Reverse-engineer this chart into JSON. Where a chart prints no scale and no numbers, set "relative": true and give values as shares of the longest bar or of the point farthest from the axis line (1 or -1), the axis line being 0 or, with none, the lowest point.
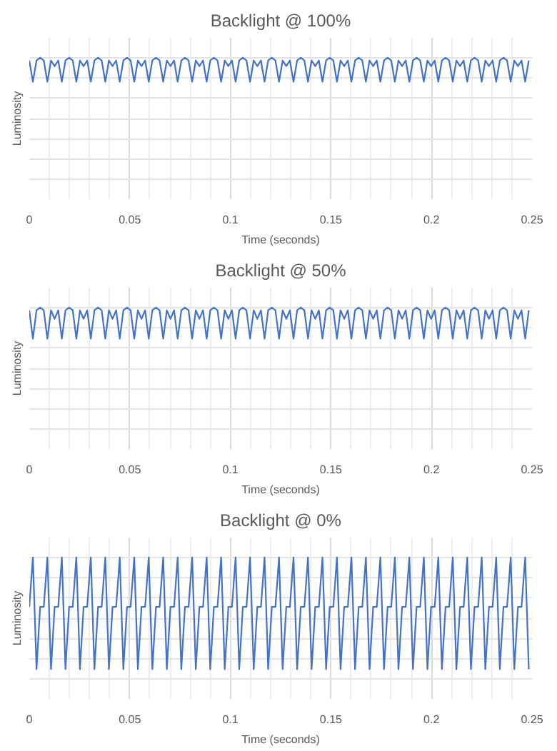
{
  "chart_data": [
    {
      "type": "line",
      "title": "Backlight @ 100%",
      "xlabel": "Time (seconds)",
      "ylabel": "Luminosity",
      "relative": true,
      "xlim": [
        0,
        0.25
      ],
      "xticks": [
        0,
        0.05,
        0.1,
        0.15,
        0.2,
        0.25
      ],
      "tick_labels": "x",
      "grid": true,
      "x": [
        0,
        0.0018,
        0.0036,
        0.0054,
        0.0072,
        0.009,
        0.0108,
        0.0126,
        0.0144,
        0.0162,
        0.018,
        0.0198,
        0.0216,
        0.0234,
        0.0252,
        0.027,
        0.0288,
        0.0306,
        0.0324,
        0.0342,
        0.036,
        0.0378,
        0.0396,
        0.0414,
        0.0432,
        0.045,
        0.0468,
        0.0486,
        0.0504,
        0.0522,
        0.054,
        0.0558,
        0.0576,
        0.0594,
        0.0612,
        0.063,
        0.0648,
        0.0666,
        0.0684,
        0.0702,
        0.072,
        0.0738,
        0.0756,
        0.0774,
        0.0792,
        0.081,
        0.0828,
        0.0846,
        0.0864,
        0.0882,
        0.09,
        0.0918,
        0.0936,
        0.0954,
        0.0972,
        0.099,
        0.1008,
        0.1026,
        0.1044,
        0.1062,
        0.108,
        0.1098,
        0.1116,
        0.1134,
        0.1152,
        0.117,
        0.1188,
        0.1206,
        0.1224,
        0.1242,
        0.126,
        0.1278,
        0.1296,
        0.1314,
        0.1332,
        0.135,
        0.1368,
        0.1386,
        0.1404,
        0.1422,
        0.144,
        0.1458,
        0.1476,
        0.1494,
        0.1512,
        0.153,
        0.1548,
        0.1566,
        0.1584,
        0.1602,
        0.162,
        0.1638,
        0.1656,
        0.1674,
        0.1692,
        0.171,
        0.1728,
        0.1746,
        0.1764,
        0.1782,
        0.18,
        0.1818,
        0.1836,
        0.1854,
        0.1872,
        0.189,
        0.1908,
        0.1926,
        0.1944,
        0.1962,
        0.198,
        0.1998,
        0.2016,
        0.2034,
        0.2052,
        0.207,
        0.2088,
        0.2106,
        0.2124,
        0.2142,
        0.216,
        0.2178,
        0.2196,
        0.2214,
        0.2232,
        0.225,
        0.2268,
        0.2286,
        0.2304,
        0.2322,
        0.234,
        0.2358,
        0.2376,
        0.2394,
        0.2412,
        0.243,
        0.2448,
        0.2466,
        0.2484
      ],
      "series": [
        {
          "color": "#4472c4",
          "values": [
            0.98,
            0.83,
            0.98,
            1,
            0.98,
            0.83,
            0.98,
            0.94,
            0.98,
            0.83,
            0.98,
            1,
            0.98,
            0.83,
            0.98,
            0.94,
            0.98,
            0.83,
            0.98,
            1,
            0.98,
            0.83,
            0.98,
            0.94,
            0.98,
            0.83,
            0.98,
            1,
            0.98,
            0.83,
            0.98,
            0.94,
            0.98,
            0.83,
            0.98,
            1,
            0.98,
            0.83,
            0.98,
            0.94,
            0.98,
            0.83,
            0.98,
            1,
            0.98,
            0.83,
            0.98,
            0.94,
            0.98,
            0.83,
            0.98,
            1,
            0.98,
            0.83,
            0.98,
            0.94,
            0.98,
            0.83,
            0.98,
            1,
            0.98,
            0.83,
            0.98,
            0.94,
            0.98,
            0.83,
            0.98,
            1,
            0.98,
            0.83,
            0.98,
            0.94,
            0.98,
            0.83,
            0.98,
            1,
            0.98,
            0.83,
            0.98,
            0.94,
            0.98,
            0.83,
            0.98,
            1,
            0.98,
            0.83,
            0.98,
            0.94,
            0.98,
            0.83,
            0.98,
            1,
            0.98,
            0.83,
            0.98,
            0.94,
            0.98,
            0.83,
            0.98,
            1,
            0.98,
            0.83,
            0.98,
            0.94,
            0.98,
            0.83,
            0.98,
            1,
            0.98,
            0.83,
            0.98,
            0.94,
            0.98,
            0.83,
            0.98,
            1,
            0.98,
            0.83,
            0.98,
            0.94,
            0.98,
            0.83,
            0.98,
            1,
            0.98,
            0.83,
            0.98,
            0.94,
            0.98,
            0.83,
            0.98,
            1,
            0.98,
            0.83,
            0.98,
            0.94,
            0.98,
            0.83,
            0.98
          ]
        }
      ]
    },
    {
      "type": "line",
      "title": "Backlight @ 50%",
      "xlabel": "Time (seconds)",
      "ylabel": "Luminosity",
      "relative": true,
      "xlim": [
        0,
        0.25
      ],
      "xticks": [
        0,
        0.05,
        0.1,
        0.15,
        0.2,
        0.25
      ],
      "tick_labels": "x",
      "grid": true,
      "x": [
        0,
        0.0018,
        0.0036,
        0.0054,
        0.0072,
        0.009,
        0.0108,
        0.0126,
        0.0144,
        0.0162,
        0.018,
        0.0198,
        0.0216,
        0.0234,
        0.0252,
        0.027,
        0.0288,
        0.0306,
        0.0324,
        0.0342,
        0.036,
        0.0378,
        0.0396,
        0.0414,
        0.0432,
        0.045,
        0.0468,
        0.0486,
        0.0504,
        0.0522,
        0.054,
        0.0558,
        0.0576,
        0.0594,
        0.0612,
        0.063,
        0.0648,
        0.0666,
        0.0684,
        0.0702,
        0.072,
        0.0738,
        0.0756,
        0.0774,
        0.0792,
        0.081,
        0.0828,
        0.0846,
        0.0864,
        0.0882,
        0.09,
        0.0918,
        0.0936,
        0.0954,
        0.0972,
        0.099,
        0.1008,
        0.1026,
        0.1044,
        0.1062,
        0.108,
        0.1098,
        0.1116,
        0.1134,
        0.1152,
        0.117,
        0.1188,
        0.1206,
        0.1224,
        0.1242,
        0.126,
        0.1278,
        0.1296,
        0.1314,
        0.1332,
        0.135,
        0.1368,
        0.1386,
        0.1404,
        0.1422,
        0.144,
        0.1458,
        0.1476,
        0.1494,
        0.1512,
        0.153,
        0.1548,
        0.1566,
        0.1584,
        0.1602,
        0.162,
        0.1638,
        0.1656,
        0.1674,
        0.1692,
        0.171,
        0.1728,
        0.1746,
        0.1764,
        0.1782,
        0.18,
        0.1818,
        0.1836,
        0.1854,
        0.1872,
        0.189,
        0.1908,
        0.1926,
        0.1944,
        0.1962,
        0.198,
        0.1998,
        0.2016,
        0.2034,
        0.2052,
        0.207,
        0.2088,
        0.2106,
        0.2124,
        0.2142,
        0.216,
        0.2178,
        0.2196,
        0.2214,
        0.2232,
        0.225,
        0.2268,
        0.2286,
        0.2304,
        0.2322,
        0.234,
        0.2358,
        0.2376,
        0.2394,
        0.2412,
        0.243,
        0.2448,
        0.2466,
        0.2484
      ],
      "series": [
        {
          "color": "#4472c4",
          "values": [
            0.98,
            0.78,
            0.98,
            1,
            0.98,
            0.78,
            0.98,
            0.92,
            0.98,
            0.78,
            0.98,
            1,
            0.98,
            0.78,
            0.98,
            0.92,
            0.98,
            0.78,
            0.98,
            1,
            0.98,
            0.78,
            0.98,
            0.92,
            0.98,
            0.78,
            0.98,
            1,
            0.98,
            0.78,
            0.98,
            0.92,
            0.98,
            0.78,
            0.98,
            1,
            0.98,
            0.78,
            0.98,
            0.92,
            0.98,
            0.78,
            0.98,
            1,
            0.98,
            0.78,
            0.98,
            0.92,
            0.98,
            0.78,
            0.98,
            1,
            0.98,
            0.78,
            0.98,
            0.92,
            0.98,
            0.78,
            0.98,
            1,
            0.98,
            0.78,
            0.98,
            0.92,
            0.98,
            0.78,
            0.98,
            1,
            0.98,
            0.78,
            0.98,
            0.92,
            0.98,
            0.78,
            0.98,
            1,
            0.98,
            0.78,
            0.98,
            0.92,
            0.98,
            0.78,
            0.98,
            1,
            0.98,
            0.78,
            0.98,
            0.92,
            0.98,
            0.78,
            0.98,
            1,
            0.98,
            0.78,
            0.98,
            0.92,
            0.98,
            0.78,
            0.98,
            1,
            0.98,
            0.78,
            0.98,
            0.92,
            0.98,
            0.78,
            0.98,
            1,
            0.98,
            0.78,
            0.98,
            0.92,
            0.98,
            0.78,
            0.98,
            1,
            0.98,
            0.78,
            0.98,
            0.92,
            0.98,
            0.78,
            0.98,
            1,
            0.98,
            0.78,
            0.98,
            0.92,
            0.98,
            0.78,
            0.98,
            1,
            0.98,
            0.78,
            0.98,
            0.92,
            0.98,
            0.78,
            0.98
          ]
        }
      ]
    },
    {
      "type": "line",
      "title": "Backlight @ 0%",
      "xlabel": "Time (seconds)",
      "ylabel": "Luminosity",
      "relative": true,
      "xlim": [
        0,
        0.25
      ],
      "xticks": [
        0,
        0.05,
        0.1,
        0.15,
        0.2,
        0.25
      ],
      "tick_labels": "x",
      "grid": true,
      "x": [
        0,
        0.0018,
        0.0036,
        0.0054,
        0.0072,
        0.009,
        0.0108,
        0.0126,
        0.0144,
        0.0162,
        0.018,
        0.0198,
        0.0216,
        0.0234,
        0.0252,
        0.027,
        0.0288,
        0.0306,
        0.0324,
        0.0342,
        0.036,
        0.0378,
        0.0396,
        0.0414,
        0.0432,
        0.045,
        0.0468,
        0.0486,
        0.0504,
        0.0522,
        0.054,
        0.0558,
        0.0576,
        0.0594,
        0.0612,
        0.063,
        0.0648,
        0.0666,
        0.0684,
        0.0702,
        0.072,
        0.0738,
        0.0756,
        0.0774,
        0.0792,
        0.081,
        0.0828,
        0.0846,
        0.0864,
        0.0882,
        0.09,
        0.0918,
        0.0936,
        0.0954,
        0.0972,
        0.099,
        0.1008,
        0.1026,
        0.1044,
        0.1062,
        0.108,
        0.1098,
        0.1116,
        0.1134,
        0.1152,
        0.117,
        0.1188,
        0.1206,
        0.1224,
        0.1242,
        0.126,
        0.1278,
        0.1296,
        0.1314,
        0.1332,
        0.135,
        0.1368,
        0.1386,
        0.1404,
        0.1422,
        0.144,
        0.1458,
        0.1476,
        0.1494,
        0.1512,
        0.153,
        0.1548,
        0.1566,
        0.1584,
        0.1602,
        0.162,
        0.1638,
        0.1656,
        0.1674,
        0.1692,
        0.171,
        0.1728,
        0.1746,
        0.1764,
        0.1782,
        0.18,
        0.1818,
        0.1836,
        0.1854,
        0.1872,
        0.189,
        0.1908,
        0.1926,
        0.1944,
        0.1962,
        0.198,
        0.1998,
        0.2016,
        0.2034,
        0.2052,
        0.207,
        0.2088,
        0.2106,
        0.2124,
        0.2142,
        0.216,
        0.2178,
        0.2196,
        0.2214,
        0.2232,
        0.225,
        0.2268,
        0.2286,
        0.2304,
        0.2322,
        0.234,
        0.2358,
        0.2376,
        0.2394,
        0.2412,
        0.243,
        0.2448,
        0.2466,
        0.2484
      ],
      "series": [
        {
          "color": "#4472c4",
          "values": [
            0.65,
            1,
            0.21,
            0.65,
            0.65,
            1,
            0.21,
            0.65,
            0.65,
            1,
            0.21,
            0.65,
            0.65,
            1,
            0.21,
            0.65,
            0.65,
            1,
            0.21,
            0.65,
            0.65,
            1,
            0.21,
            0.65,
            0.65,
            1,
            0.21,
            0.65,
            0.65,
            1,
            0.21,
            0.65,
            0.65,
            1,
            0.21,
            0.65,
            0.65,
            1,
            0.21,
            0.65,
            0.65,
            1,
            0.21,
            0.65,
            0.65,
            1,
            0.21,
            0.65,
            0.65,
            1,
            0.21,
            0.65,
            0.65,
            1,
            0.21,
            0.65,
            0.65,
            1,
            0.21,
            0.65,
            0.65,
            1,
            0.21,
            0.65,
            0.65,
            1,
            0.21,
            0.65,
            0.65,
            1,
            0.21,
            0.65,
            0.65,
            1,
            0.21,
            0.65,
            0.65,
            1,
            0.21,
            0.65,
            0.65,
            1,
            0.21,
            0.65,
            0.65,
            1,
            0.21,
            0.65,
            0.65,
            1,
            0.21,
            0.65,
            0.65,
            1,
            0.21,
            0.65,
            0.65,
            1,
            0.21,
            0.65,
            0.65,
            1,
            0.21,
            0.65,
            0.65,
            1,
            0.21,
            0.65,
            0.65,
            1,
            0.21,
            0.65,
            0.65,
            1,
            0.21,
            0.65,
            0.65,
            1,
            0.21,
            0.65,
            0.65,
            1,
            0.21,
            0.65,
            0.65,
            1,
            0.21,
            0.65,
            0.65,
            1,
            0.21,
            0.65,
            0.65,
            1,
            0.21,
            0.65,
            0.65,
            1,
            0.21
          ]
        }
      ]
    }
  ]
}
